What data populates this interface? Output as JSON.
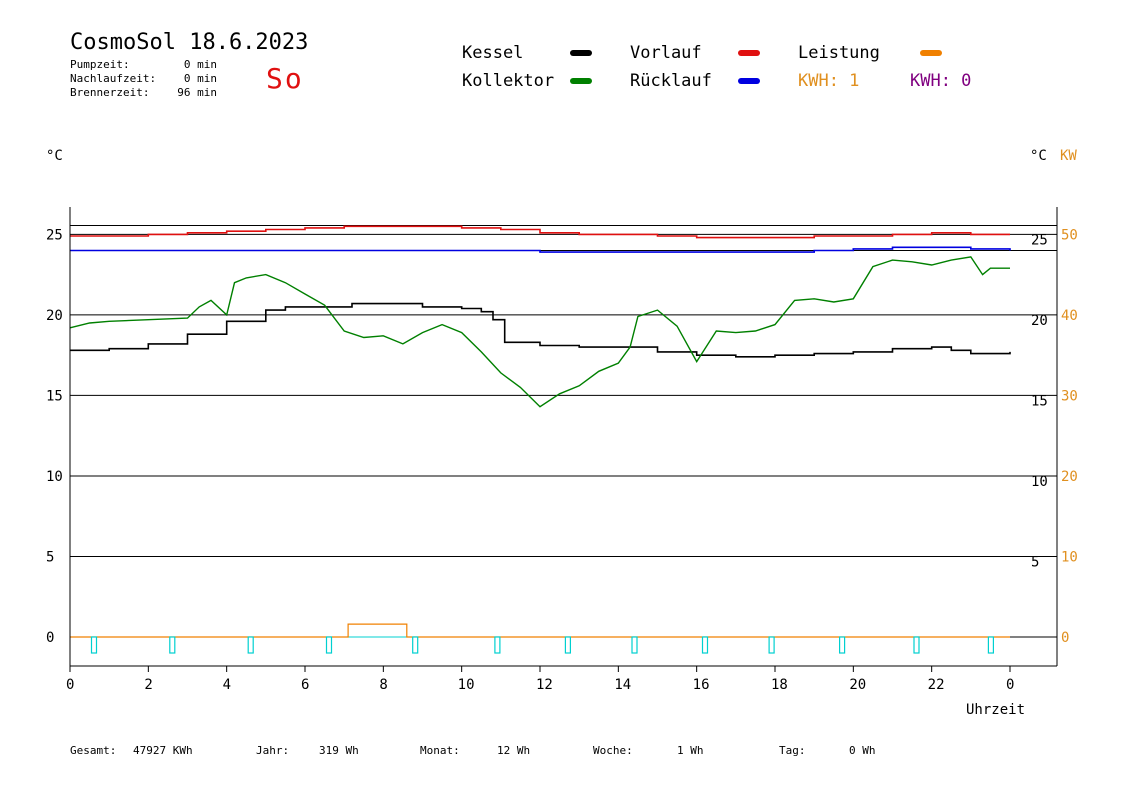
{
  "header": {
    "title": "CosmoSol 18.6.2023",
    "day": "So",
    "stats": [
      {
        "label": "Pumpzeit:",
        "value": "0 min"
      },
      {
        "label": "Nachlaufzeit:",
        "value": "0 min"
      },
      {
        "label": "Brennerzeit:",
        "value": "96 min"
      }
    ]
  },
  "legend": {
    "kessel": "Kessel",
    "kollektor": "Kollektor",
    "vorlauf": "Vorlauf",
    "ruecklauf": "Rücklauf",
    "leistung": "Leistung",
    "kwh1": "KWH: 1",
    "kwh2": "KWH: 0"
  },
  "colors": {
    "kessel": "#000000",
    "kollektor": "#008000",
    "vorlauf": "#e01010",
    "ruecklauf": "#0000e0",
    "leistung": "#f08000",
    "kw_axis": "#e09020",
    "kwh2": "#800080",
    "pump": "#00d0d0"
  },
  "axis_units": {
    "left": "°C",
    "right_c": "°C",
    "right_kw": "KW",
    "x": "Uhrzeit"
  },
  "footer": [
    {
      "label": "Gesamt:",
      "value": "47927 KWh"
    },
    {
      "label": "Jahr:",
      "value": "319 Wh"
    },
    {
      "label": "Monat:",
      "value": "12 Wh"
    },
    {
      "label": "Woche:",
      "value": "1 Wh"
    },
    {
      "label": "Tag:",
      "value": "0 Wh"
    }
  ],
  "chart_data": {
    "type": "line",
    "title": "CosmoSol 18.6.2023",
    "xlabel": "Uhrzeit",
    "ylabel": "°C",
    "x_ticks": [
      "0",
      "2",
      "4",
      "6",
      "8",
      "10",
      "12",
      "14",
      "16",
      "18",
      "20",
      "22",
      "0"
    ],
    "xlim": [
      0,
      24
    ],
    "ylim_left": [
      -1.8,
      26.7
    ],
    "y_ticks_left": [
      0,
      5,
      10,
      15,
      20,
      25
    ],
    "y_ticks_right_c": [
      5,
      10,
      15,
      20,
      25
    ],
    "y_ticks_right_kw": [
      0,
      10,
      20,
      30,
      40,
      50
    ],
    "grid": true,
    "series": [
      {
        "name": "Vorlauf",
        "points": [
          [
            0,
            24.9
          ],
          [
            1,
            24.9
          ],
          [
            2,
            25.0
          ],
          [
            3,
            25.1
          ],
          [
            4,
            25.2
          ],
          [
            5,
            25.3
          ],
          [
            6,
            25.4
          ],
          [
            7,
            25.5
          ],
          [
            8,
            25.5
          ],
          [
            9,
            25.5
          ],
          [
            10,
            25.4
          ],
          [
            11,
            25.3
          ],
          [
            12,
            25.1
          ],
          [
            13,
            25.0
          ],
          [
            14,
            25.0
          ],
          [
            15,
            24.9
          ],
          [
            16,
            24.8
          ],
          [
            17,
            24.8
          ],
          [
            18,
            24.8
          ],
          [
            19,
            24.9
          ],
          [
            20,
            24.9
          ],
          [
            21,
            25.0
          ],
          [
            22,
            25.1
          ],
          [
            23,
            25.0
          ],
          [
            24,
            25.0
          ]
        ]
      },
      {
        "name": "Rücklauf",
        "points": [
          [
            0,
            24.0
          ],
          [
            2,
            24.0
          ],
          [
            4,
            24.0
          ],
          [
            6,
            24.0
          ],
          [
            8,
            24.0
          ],
          [
            10,
            24.0
          ],
          [
            12,
            23.9
          ],
          [
            14,
            23.9
          ],
          [
            16,
            23.9
          ],
          [
            18,
            23.9
          ],
          [
            19,
            24.0
          ],
          [
            20,
            24.1
          ],
          [
            21,
            24.2
          ],
          [
            22,
            24.2
          ],
          [
            23,
            24.1
          ],
          [
            24,
            24.0
          ]
        ]
      },
      {
        "name": "Kessel",
        "points": [
          [
            0,
            17.8
          ],
          [
            1,
            17.9
          ],
          [
            2,
            18.2
          ],
          [
            3,
            18.8
          ],
          [
            4,
            19.6
          ],
          [
            5,
            20.3
          ],
          [
            5.5,
            20.5
          ],
          [
            7,
            20.5
          ],
          [
            7.2,
            20.7
          ],
          [
            8.6,
            20.7
          ],
          [
            9,
            20.5
          ],
          [
            10,
            20.4
          ],
          [
            10.5,
            20.2
          ],
          [
            10.8,
            19.7
          ],
          [
            11.1,
            18.3
          ],
          [
            12,
            18.1
          ],
          [
            13,
            18.0
          ],
          [
            14,
            18.0
          ],
          [
            15,
            17.7
          ],
          [
            16,
            17.5
          ],
          [
            17,
            17.4
          ],
          [
            18,
            17.5
          ],
          [
            19,
            17.6
          ],
          [
            20,
            17.7
          ],
          [
            21,
            17.9
          ],
          [
            22,
            18.0
          ],
          [
            22.5,
            17.8
          ],
          [
            23,
            17.6
          ],
          [
            24,
            17.7
          ]
        ]
      },
      {
        "name": "Kollektor",
        "points": [
          [
            0,
            19.2
          ],
          [
            0.5,
            19.5
          ],
          [
            1,
            19.6
          ],
          [
            2,
            19.7
          ],
          [
            3,
            19.8
          ],
          [
            3.3,
            20.5
          ],
          [
            3.6,
            20.9
          ],
          [
            4,
            20.0
          ],
          [
            4.2,
            22.0
          ],
          [
            4.5,
            22.3
          ],
          [
            5,
            22.5
          ],
          [
            5.5,
            22.0
          ],
          [
            6,
            21.3
          ],
          [
            6.5,
            20.6
          ],
          [
            7,
            19.0
          ],
          [
            7.5,
            18.6
          ],
          [
            8,
            18.7
          ],
          [
            8.5,
            18.2
          ],
          [
            9,
            18.9
          ],
          [
            9.5,
            19.4
          ],
          [
            10,
            18.9
          ],
          [
            10.5,
            17.7
          ],
          [
            11,
            16.4
          ],
          [
            11.5,
            15.5
          ],
          [
            12,
            14.3
          ],
          [
            12.5,
            15.1
          ],
          [
            13,
            15.6
          ],
          [
            13.5,
            16.5
          ],
          [
            14,
            17.0
          ],
          [
            14.3,
            18.0
          ],
          [
            14.5,
            19.9
          ],
          [
            15,
            20.3
          ],
          [
            15.5,
            19.3
          ],
          [
            16,
            17.1
          ],
          [
            16.5,
            19.0
          ],
          [
            17,
            18.9
          ],
          [
            17.5,
            19.0
          ],
          [
            18,
            19.4
          ],
          [
            18.5,
            20.9
          ],
          [
            19,
            21.0
          ],
          [
            19.5,
            20.8
          ],
          [
            20,
            21.0
          ],
          [
            20.5,
            23.0
          ],
          [
            21,
            23.4
          ],
          [
            21.5,
            23.3
          ],
          [
            22,
            23.1
          ],
          [
            22.5,
            23.4
          ],
          [
            23,
            23.6
          ],
          [
            23.3,
            22.5
          ],
          [
            23.5,
            22.9
          ],
          [
            24,
            22.9
          ]
        ]
      }
    ],
    "leistung": [
      [
        0,
        0
      ],
      [
        7.1,
        0
      ],
      [
        7.1,
        0.4
      ],
      [
        8.6,
        0.4
      ],
      [
        8.6,
        0
      ],
      [
        24,
        0
      ]
    ],
    "pump_pulses": [
      0.6,
      2.6,
      4.6,
      6.6,
      8.8,
      10.9,
      12.7,
      14.4,
      16.2,
      17.9,
      19.7,
      21.6,
      23.5
    ]
  }
}
